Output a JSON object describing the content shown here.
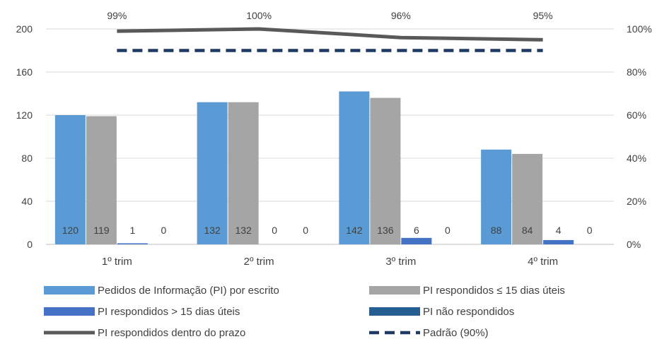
{
  "chart_data": {
    "type": "bar",
    "categories": [
      "1º trim",
      "2º trim",
      "3º trim",
      "4º trim"
    ],
    "series": [
      {
        "name": "Pedidos de Informação (PI) por escrito",
        "type": "bar",
        "axis": "left",
        "values": [
          120,
          132,
          142,
          88
        ],
        "color": "#5B9BD5"
      },
      {
        "name": "PI respondidos ≤ 15 dias úteis",
        "type": "bar",
        "axis": "left",
        "values": [
          119,
          132,
          136,
          84
        ],
        "color": "#A5A5A5"
      },
      {
        "name": "PI respondidos > 15 dias úteis",
        "type": "bar",
        "axis": "left",
        "values": [
          1,
          0,
          6,
          4
        ],
        "color": "#4472C4"
      },
      {
        "name": "PI não respondidos",
        "type": "bar",
        "axis": "left",
        "values": [
          0,
          0,
          0,
          0
        ],
        "color": "#255E91"
      },
      {
        "name": "PI respondidos dentro do prazo",
        "type": "line",
        "axis": "right",
        "values": [
          99,
          100,
          96,
          95
        ],
        "value_labels": [
          "99%",
          "100%",
          "96%",
          "95%"
        ],
        "color": "#595959"
      },
      {
        "name": "Padrão (90%)",
        "type": "line",
        "style": "dashed",
        "axis": "right",
        "values": [
          90,
          90,
          90,
          90
        ],
        "color": "#1F3864"
      }
    ],
    "ylim": [
      0,
      200
    ],
    "yticks": [
      0,
      40,
      80,
      120,
      160,
      200
    ],
    "y2lim": [
      0,
      100
    ],
    "y2ticks": [
      "0%",
      "20%",
      "40%",
      "60%",
      "80%",
      "100%"
    ],
    "grid": true,
    "legend_position": "bottom"
  }
}
